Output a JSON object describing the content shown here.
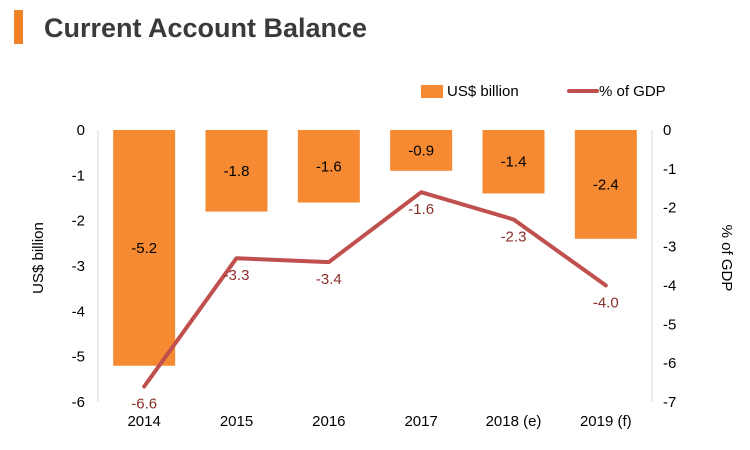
{
  "page": {
    "title": "Current Account Balance"
  },
  "colors": {
    "accent": "#f08127",
    "bar": "#f58a33",
    "line": "#c0504d",
    "line_label": "#8b2f2a",
    "axis": "#d9d9d9"
  },
  "chart_data": {
    "type": "bar",
    "title": "Current Account Balance",
    "categories": [
      "2014",
      "2015",
      "2016",
      "2017",
      "2018 (e)",
      "2019 (f)"
    ],
    "series": [
      {
        "name": "US$ billion",
        "type": "bar",
        "axis": "left",
        "values": [
          -5.2,
          -1.8,
          -1.6,
          -0.9,
          -1.4,
          -2.4
        ],
        "labels": [
          "-5.2",
          "-1.8",
          "-1.6",
          "-0.9",
          "-1.4",
          "-2.4"
        ]
      },
      {
        "name": "% of GDP",
        "type": "line",
        "axis": "right",
        "values": [
          -6.6,
          -3.3,
          -3.4,
          -1.6,
          -2.3,
          -4.0
        ],
        "labels": [
          "-6.6",
          "-3.3",
          "-3.4",
          "-1.6",
          "-2.3",
          "-4.0"
        ]
      }
    ],
    "ylabel": "US$ billion",
    "ylim": [
      -6,
      0
    ],
    "yticks": [
      "0",
      "-1",
      "-2",
      "-3",
      "-4",
      "-5",
      "-6"
    ],
    "y2label": "% of GDP",
    "y2lim": [
      -7,
      0
    ],
    "y2ticks": [
      "0",
      "-1",
      "-2",
      "-3",
      "-4",
      "-5",
      "-6",
      "-7"
    ],
    "grid": false,
    "legend_position": "top-right"
  }
}
